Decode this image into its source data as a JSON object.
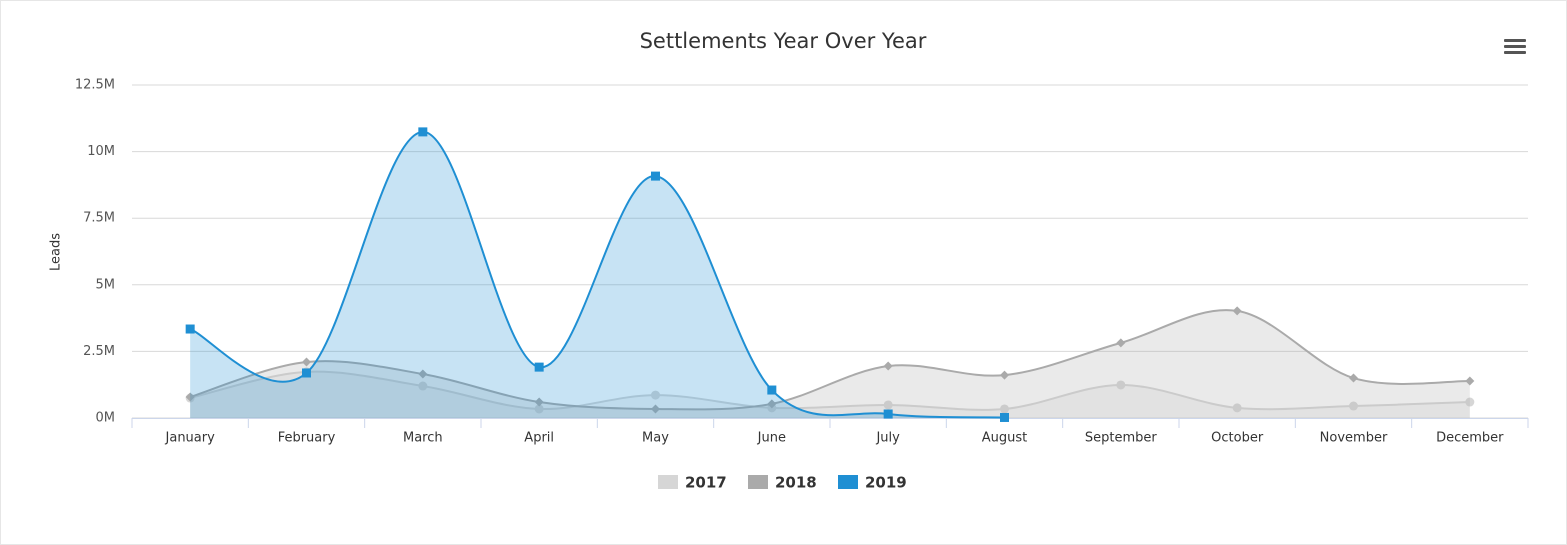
{
  "chart_data": {
    "type": "areaspline",
    "title": "Settlements Year Over Year",
    "y_label": "Leads",
    "categories": [
      "January",
      "February",
      "March",
      "April",
      "May",
      "June",
      "July",
      "August",
      "September",
      "October",
      "November",
      "December"
    ],
    "ylim": [
      0,
      12500000
    ],
    "yticks": [
      {
        "value": 0,
        "label": "0M"
      },
      {
        "value": 2500000,
        "label": "2.5M"
      },
      {
        "value": 5000000,
        "label": "5M"
      },
      {
        "value": 7500000,
        "label": "7.5M"
      },
      {
        "value": 10000000,
        "label": "10M"
      },
      {
        "value": 12500000,
        "label": "12.5M"
      }
    ],
    "grid": true,
    "legend": "bottom",
    "series": [
      {
        "name": "2017",
        "color": "#d6d6d6",
        "marker": "circle",
        "values": [
          750000,
          1730000,
          1200000,
          340000,
          860000,
          380000,
          490000,
          340000,
          1240000,
          380000,
          450000,
          600000
        ]
      },
      {
        "name": "2018",
        "color": "#aaaaaa",
        "marker": "diamond",
        "values": [
          790000,
          2100000,
          1650000,
          600000,
          340000,
          530000,
          1950000,
          1610000,
          2820000,
          4020000,
          1500000,
          1390000
        ]
      },
      {
        "name": "2019",
        "color": "#1f8fd3",
        "marker": "square",
        "values": [
          3340000,
          1690000,
          10740000,
          1910000,
          9080000,
          1050000,
          150000,
          20000,
          null,
          null,
          null,
          null
        ]
      }
    ]
  }
}
